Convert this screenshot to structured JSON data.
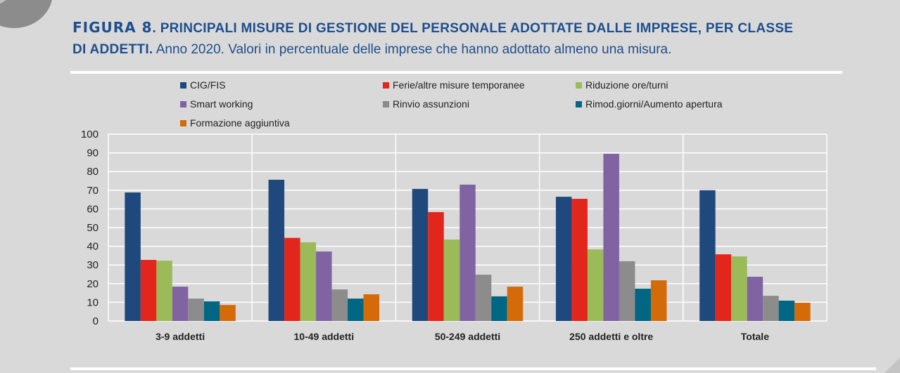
{
  "figure": {
    "number_label": "FIGURA 8",
    "title_bold": ". PRINCIPALI MISURE DI GESTIONE DEL PERSONALE ADOTTATE DALLE IMPRESE, PER CLASSE DI ADDETTI.",
    "subtitle": " Anno 2020. Valori in percentuale delle imprese che hanno adottato almeno una misura."
  },
  "colors": {
    "title": "#1f4e8c",
    "background": "#d9d9d9",
    "gridline": "#ffffff"
  },
  "chart_data": {
    "type": "bar",
    "title": "PRINCIPALI MISURE DI GESTIONE DEL PERSONALE ADOTTATE DALLE IMPRESE, PER CLASSE DI ADDETTI",
    "subtitle": "Anno 2020. Valori in percentuale delle imprese che hanno adottato almeno una misura.",
    "xlabel": "",
    "ylabel": "",
    "ylim": [
      0,
      100
    ],
    "yticks": [
      0,
      10,
      20,
      30,
      40,
      50,
      60,
      70,
      80,
      90,
      100
    ],
    "grid": true,
    "legend_position": "top",
    "categories": [
      "3-9 addetti",
      "10-49 addetti",
      "50-249 addetti",
      "250 addetti e oltre",
      "Totale"
    ],
    "series": [
      {
        "name": "CIG/FIS",
        "color": "#1f497d",
        "values": [
          68.8,
          75.6,
          70.7,
          66.5,
          70.0
        ]
      },
      {
        "name": "Ferie/altre misure temporanee",
        "color": "#e3261b",
        "values": [
          32.7,
          44.5,
          58.3,
          65.4,
          35.7
        ]
      },
      {
        "name": "Riduzione ore/turni",
        "color": "#9bbb59",
        "values": [
          32.3,
          42.1,
          43.6,
          38.3,
          34.6
        ]
      },
      {
        "name": "Smart working",
        "color": "#8064a2",
        "values": [
          18.4,
          37.2,
          73.0,
          89.5,
          23.7
        ]
      },
      {
        "name": "Rinvio assunzioni",
        "color": "#8c8c8c",
        "values": [
          12.0,
          16.9,
          24.8,
          32.0,
          13.5
        ]
      },
      {
        "name": "Rimod.giorni/Aumento apertura",
        "color": "#006683",
        "values": [
          10.5,
          12.0,
          13.2,
          17.3,
          10.9
        ]
      },
      {
        "name": "Formazione aggiuntiva",
        "color": "#d46b08",
        "values": [
          8.6,
          14.3,
          18.4,
          21.8,
          9.8
        ]
      }
    ]
  }
}
